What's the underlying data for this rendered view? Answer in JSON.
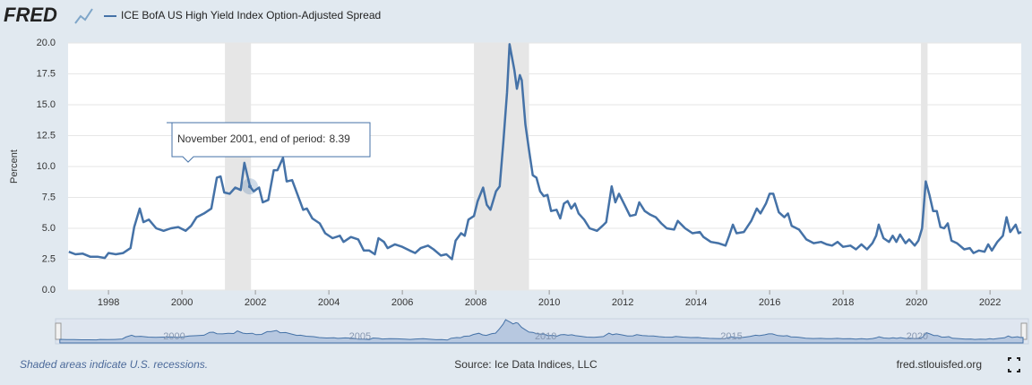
{
  "chart_data": {
    "type": "line",
    "logo": "FRED",
    "y_label": "Percent",
    "footer_note": "Shaded areas indicate U.S. recessions.",
    "source": "Source: Ice Data Indices, LLC",
    "site": "fred.stlouisfed.org",
    "xlim": [
      1996.9,
      2022.85
    ],
    "xticks": [
      1998,
      2000,
      2002,
      2004,
      2006,
      2008,
      2010,
      2012,
      2014,
      2016,
      2018,
      2020,
      2022
    ],
    "ylim": [
      0,
      20
    ],
    "yticks": [
      {
        "value": 0,
        "label": "0.0"
      },
      2.5,
      {
        "value": 5,
        "label": "5.0"
      },
      7.5,
      {
        "value": 10,
        "label": "10.0"
      },
      12.5,
      {
        "value": 15,
        "label": "15.0"
      },
      17.5,
      {
        "value": 20,
        "label": "20.0"
      }
    ],
    "grid": true,
    "navigator_ticks": [
      2000,
      2005,
      2010,
      2015,
      2020
    ],
    "recessions": [
      [
        2001.17,
        2001.88
      ],
      [
        2007.95,
        2009.45
      ],
      [
        2020.12,
        2020.3
      ]
    ],
    "tooltip": {
      "label": "November 2001, end of period:",
      "x": 2001.85,
      "value": 8.39
    },
    "x": [
      1996.92,
      1997.1,
      1997.3,
      1997.5,
      1997.7,
      1997.9,
      1998.0,
      1998.2,
      1998.4,
      1998.6,
      1998.7,
      1998.85,
      1998.95,
      1999.1,
      1999.3,
      1999.5,
      1999.7,
      1999.9,
      2000.1,
      2000.25,
      2000.4,
      2000.6,
      2000.8,
      2000.95,
      2001.05,
      2001.15,
      2001.3,
      2001.45,
      2001.6,
      2001.7,
      2001.85,
      2001.95,
      2002.1,
      2002.2,
      2002.35,
      2002.5,
      2002.6,
      2002.75,
      2002.85,
      2003.0,
      2003.1,
      2003.3,
      2003.4,
      2003.55,
      2003.75,
      2003.9,
      2004.1,
      2004.3,
      2004.4,
      2004.6,
      2004.8,
      2004.95,
      2005.1,
      2005.25,
      2005.35,
      2005.5,
      2005.6,
      2005.8,
      2006.0,
      2006.2,
      2006.35,
      2006.5,
      2006.7,
      2006.85,
      2007.05,
      2007.2,
      2007.35,
      2007.45,
      2007.6,
      2007.7,
      2007.8,
      2007.95,
      2008.05,
      2008.2,
      2008.3,
      2008.4,
      2008.55,
      2008.65,
      2008.75,
      2008.85,
      2008.92,
      2009.05,
      2009.12,
      2009.2,
      2009.25,
      2009.35,
      2009.45,
      2009.55,
      2009.65,
      2009.75,
      2009.85,
      2009.95,
      2010.05,
      2010.2,
      2010.3,
      2010.4,
      2010.5,
      2010.6,
      2010.7,
      2010.8,
      2010.95,
      2011.1,
      2011.3,
      2011.45,
      2011.55,
      2011.7,
      2011.8,
      2011.9,
      2012.05,
      2012.2,
      2012.35,
      2012.45,
      2012.6,
      2012.75,
      2012.9,
      2013.05,
      2013.2,
      2013.4,
      2013.5,
      2013.7,
      2013.9,
      2014.1,
      2014.2,
      2014.4,
      2014.6,
      2014.8,
      2014.9,
      2015.0,
      2015.1,
      2015.3,
      2015.5,
      2015.65,
      2015.75,
      2015.9,
      2016.0,
      2016.1,
      2016.25,
      2016.4,
      2016.5,
      2016.6,
      2016.8,
      2017.0,
      2017.2,
      2017.4,
      2017.55,
      2017.7,
      2017.85,
      2018.0,
      2018.2,
      2018.35,
      2018.5,
      2018.65,
      2018.8,
      2018.9,
      2018.97,
      2019.1,
      2019.25,
      2019.35,
      2019.45,
      2019.55,
      2019.7,
      2019.8,
      2019.95,
      2020.05,
      2020.15,
      2020.25,
      2020.35,
      2020.45,
      2020.55,
      2020.65,
      2020.75,
      2020.85,
      2020.95,
      2021.1,
      2021.3,
      2021.45,
      2021.55,
      2021.7,
      2021.85,
      2021.95,
      2022.05,
      2022.2,
      2022.35,
      2022.45,
      2022.55,
      2022.7,
      2022.78,
      2022.85
    ],
    "series": [
      {
        "name": "ICE BofA US High Yield Index Option-Adjusted Spread",
        "color": "#4572a7",
        "values": [
          3.1,
          2.9,
          2.95,
          2.7,
          2.7,
          2.6,
          3.0,
          2.9,
          3.0,
          3.4,
          5.1,
          6.6,
          5.5,
          5.7,
          5.0,
          4.8,
          5.0,
          5.1,
          4.8,
          5.2,
          5.9,
          6.2,
          6.6,
          9.1,
          9.2,
          7.9,
          7.8,
          8.3,
          8.1,
          10.3,
          8.39,
          8.0,
          8.3,
          7.1,
          7.3,
          9.7,
          9.7,
          10.7,
          8.8,
          8.9,
          8.1,
          6.5,
          6.6,
          5.8,
          5.4,
          4.6,
          4.2,
          4.4,
          3.9,
          4.3,
          4.1,
          3.2,
          3.2,
          2.9,
          4.2,
          3.9,
          3.4,
          3.7,
          3.5,
          3.2,
          3.0,
          3.4,
          3.6,
          3.3,
          2.8,
          2.9,
          2.5,
          4.0,
          4.6,
          4.4,
          5.7,
          6.0,
          7.2,
          8.3,
          6.9,
          6.5,
          8.0,
          8.4,
          12.0,
          16.0,
          19.9,
          17.8,
          16.3,
          17.4,
          17.0,
          13.4,
          11.3,
          9.3,
          9.1,
          8.0,
          7.6,
          7.7,
          6.4,
          6.5,
          5.8,
          7.0,
          7.2,
          6.6,
          7.0,
          6.2,
          5.7,
          5.0,
          4.8,
          5.2,
          5.5,
          8.4,
          7.1,
          7.8,
          6.9,
          6.0,
          6.1,
          7.1,
          6.4,
          6.1,
          5.9,
          5.4,
          5.0,
          4.9,
          5.6,
          5.0,
          4.6,
          4.7,
          4.3,
          3.9,
          3.8,
          3.6,
          4.4,
          5.3,
          4.6,
          4.7,
          5.6,
          6.6,
          6.2,
          7.0,
          7.8,
          7.8,
          6.3,
          5.9,
          6.2,
          5.2,
          4.9,
          4.1,
          3.8,
          3.9,
          3.7,
          3.6,
          3.9,
          3.5,
          3.6,
          3.3,
          3.7,
          3.3,
          3.8,
          4.4,
          5.3,
          4.2,
          3.9,
          4.4,
          3.9,
          4.5,
          3.8,
          4.1,
          3.6,
          4.0,
          5.0,
          8.8,
          7.7,
          6.4,
          6.4,
          5.1,
          5.0,
          5.4,
          4.0,
          3.8,
          3.3,
          3.4,
          3.0,
          3.2,
          3.1,
          3.7,
          3.2,
          3.9,
          4.4,
          5.9,
          4.7,
          5.3,
          4.6,
          4.7
        ]
      }
    ]
  }
}
